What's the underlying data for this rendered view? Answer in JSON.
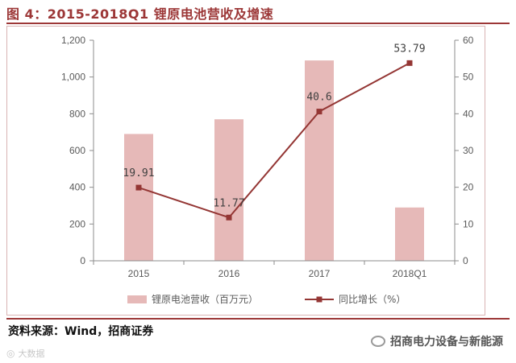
{
  "header": {
    "title": "图 4：2015-2018Q1 锂原电池营收及增速"
  },
  "chart_data": {
    "type": "bar",
    "categories": [
      "2015",
      "2016",
      "2017",
      "2018Q1"
    ],
    "series": [
      {
        "name": "锂原电池营收（百万元）",
        "type": "bar",
        "axis": "left",
        "values": [
          690,
          770,
          1090,
          290
        ],
        "color": "#e6b9b8"
      },
      {
        "name": "同比增长（%）",
        "type": "line",
        "axis": "right",
        "values": [
          19.91,
          11.77,
          40.6,
          53.79
        ],
        "color": "#943634"
      }
    ],
    "data_labels": [
      "19.91",
      "11.77",
      "40.6",
      "53.79"
    ],
    "y_left": {
      "ylim": [
        0,
        1200
      ],
      "ticks": [
        "0",
        "200",
        "400",
        "600",
        "800",
        "1,000",
        "1,200"
      ]
    },
    "y_right": {
      "ylim": [
        0,
        60
      ],
      "ticks": [
        "0",
        "10",
        "20",
        "30",
        "40",
        "50",
        "60"
      ]
    },
    "legend_position": "bottom"
  },
  "footer": {
    "source": "资料来源：Wind，招商证券",
    "brand": "招商电力设备与新能源",
    "watermark": "大数据"
  }
}
